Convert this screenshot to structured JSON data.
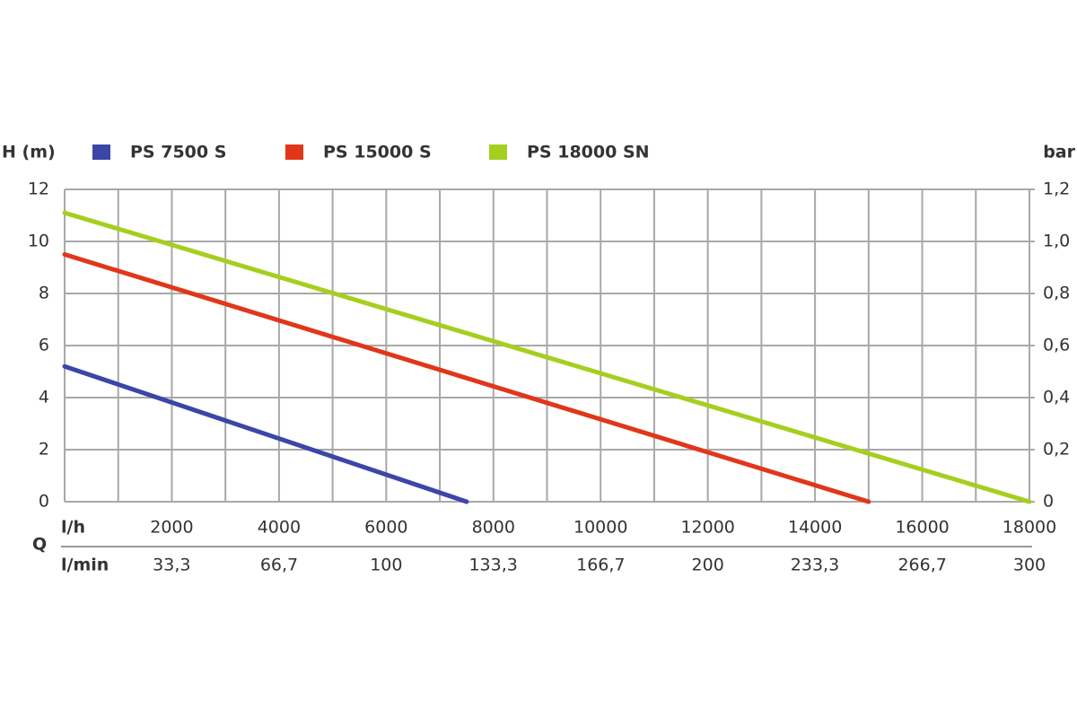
{
  "chart_data": {
    "type": "line",
    "y_label": "H (m)",
    "y2_label": "bar",
    "x_label": "Q",
    "x_unit": "l/h",
    "x2_unit": "l/min",
    "xlim": [
      0,
      18000
    ],
    "xticks": [
      2000,
      4000,
      6000,
      8000,
      10000,
      12000,
      14000,
      16000,
      18000
    ],
    "x_minor_ticks": [
      0,
      1000,
      3000,
      5000,
      7000,
      9000,
      11000,
      13000,
      15000,
      17000
    ],
    "x2lim": [
      0,
      300
    ],
    "x2ticks": [
      {
        "value": 33.3,
        "label": "33,3"
      },
      {
        "value": 66.7,
        "label": "66,7"
      },
      100,
      {
        "value": 133.3,
        "label": "133,3"
      },
      {
        "value": 166.7,
        "label": "166,7"
      },
      200,
      {
        "value": 233.3,
        "label": "233,3"
      },
      {
        "value": 266.7,
        "label": "266,7"
      },
      300
    ],
    "ylim": [
      0,
      12
    ],
    "yticks": [
      0,
      2,
      4,
      6,
      8,
      10,
      12
    ],
    "y2lim": [
      0,
      1.2
    ],
    "y2ticks": [
      0,
      {
        "value": 0.2,
        "label": "0,2"
      },
      {
        "value": 0.4,
        "label": "0,4"
      },
      {
        "value": 0.6,
        "label": "0,6"
      },
      {
        "value": 0.8,
        "label": "0,8"
      },
      {
        "value": 1.0,
        "label": "1,0"
      },
      {
        "value": 1.2,
        "label": "1,2"
      }
    ],
    "grid": true,
    "series": [
      {
        "name": "PS 7500 S",
        "color": "#3c46a8",
        "x": [
          0,
          7500
        ],
        "values": [
          5.2,
          0
        ]
      },
      {
        "name": "PS 15000 S",
        "color": "#e2361a",
        "x": [
          0,
          15000
        ],
        "values": [
          9.5,
          0
        ]
      },
      {
        "name": "PS 18000 SN",
        "color": "#a5cf1f",
        "x": [
          0,
          18000
        ],
        "values": [
          11.1,
          0
        ]
      }
    ]
  }
}
